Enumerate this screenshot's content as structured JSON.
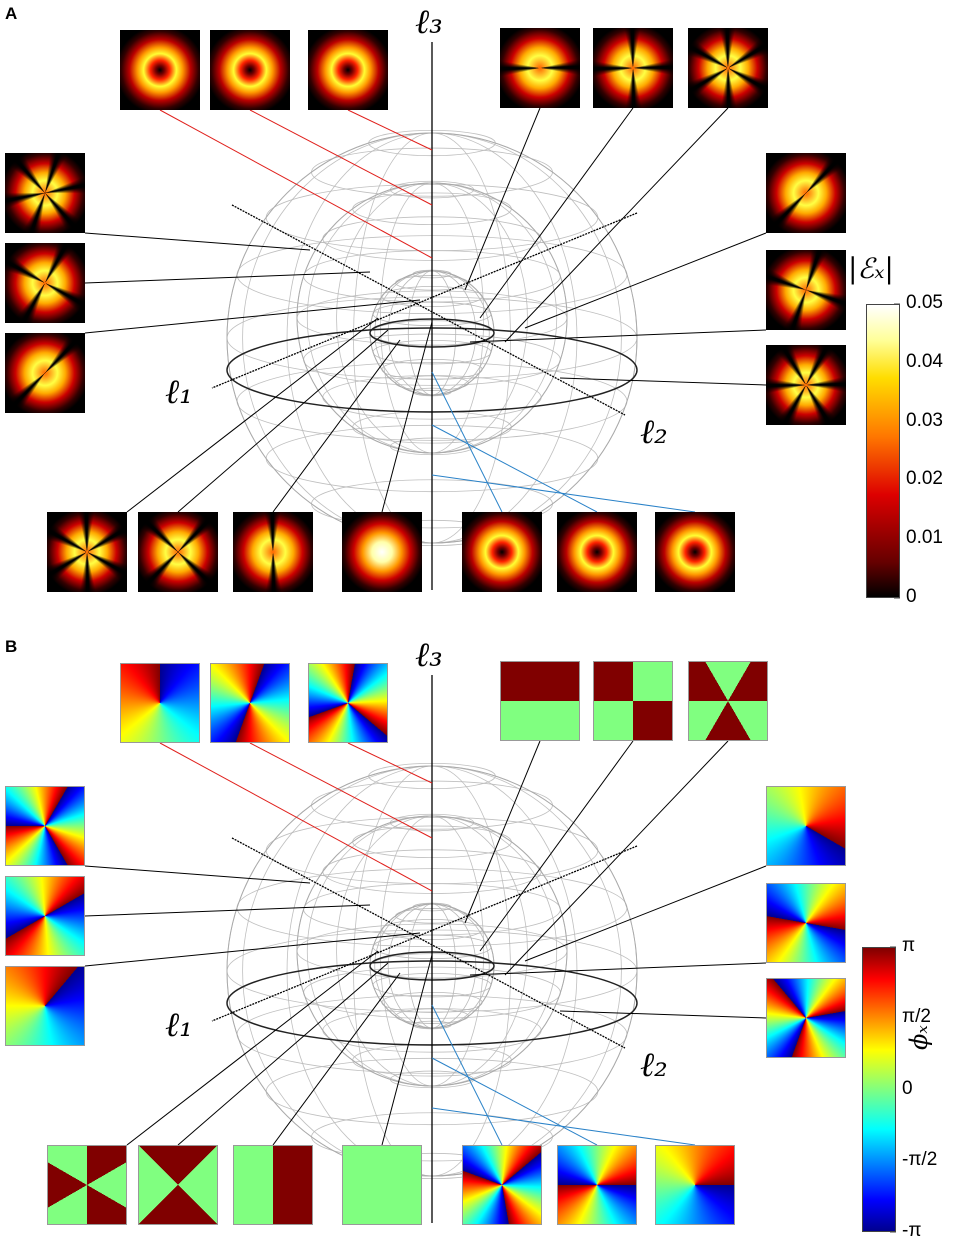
{
  "panels": [
    {
      "label": "A",
      "axis_labels": [
        "ℓ₁",
        "ℓ₂",
        "ℓ₃"
      ],
      "colorbar": {
        "label": "|ℰₓ|",
        "ticks": [
          "0.05",
          "0.04",
          "0.03",
          "0.02",
          "0.01",
          "0"
        ]
      }
    },
    {
      "label": "B",
      "axis_labels": [
        "ℓ₁",
        "ℓ₂",
        "ℓ₃"
      ],
      "colorbar": {
        "label": "ϕₓ",
        "ticks": [
          "π",
          "π/2",
          "0",
          "-π/2",
          "-π"
        ]
      }
    }
  ]
}
